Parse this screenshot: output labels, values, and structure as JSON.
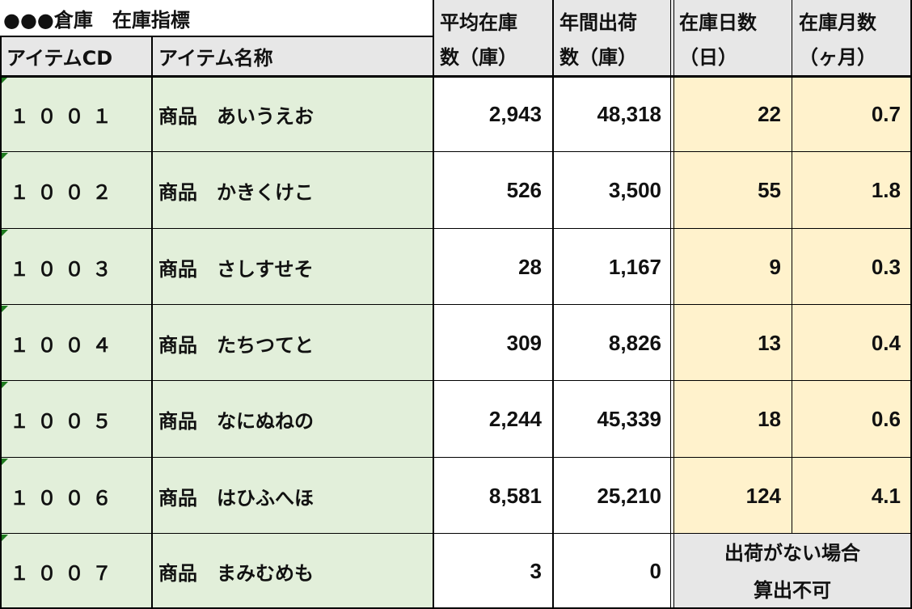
{
  "sheet": {
    "title": "●●●倉庫　在庫指標",
    "headers": {
      "code": "アイテムCD",
      "name": "アイテム名称",
      "avg_stock_1": "平均在庫",
      "avg_stock_2": "数（庫）",
      "annual_ship_1": "年間出荷",
      "annual_ship_2": "数（庫）",
      "stock_days_1": "在庫日数",
      "stock_days_2": "（日）",
      "stock_months_1": "在庫月数",
      "stock_months_2": "（ヶ月）"
    },
    "rows": [
      {
        "code": "１００１",
        "name": "商品　あいうえお",
        "avg_stock": "2,943",
        "annual_ship": "48,318",
        "days": "22",
        "months": "0.7"
      },
      {
        "code": "１００２",
        "name": "商品　かきくけこ",
        "avg_stock": "526",
        "annual_ship": "3,500",
        "days": "55",
        "months": "1.8"
      },
      {
        "code": "１００３",
        "name": "商品　さしすせそ",
        "avg_stock": "28",
        "annual_ship": "1,167",
        "days": "9",
        "months": "0.3"
      },
      {
        "code": "１００４",
        "name": "商品　たちつてと",
        "avg_stock": "309",
        "annual_ship": "8,826",
        "days": "13",
        "months": "0.4"
      },
      {
        "code": "１００５",
        "name": "商品　なにぬねの",
        "avg_stock": "2,244",
        "annual_ship": "45,339",
        "days": "18",
        "months": "0.6"
      },
      {
        "code": "１００６",
        "name": "商品　はひふへほ",
        "avg_stock": "8,581",
        "annual_ship": "25,210",
        "days": "124",
        "months": "4.1"
      }
    ],
    "last_row": {
      "code": "１００７",
      "name": "商品　まみむめも",
      "avg_stock": "3",
      "annual_ship": "0",
      "na_line1": "出荷がない場合",
      "na_line2": "算出不可"
    }
  },
  "colors": {
    "green": "#e2efda",
    "peach": "#fff2cc",
    "gray": "#e7e7e7",
    "comment_marker": "#1e7a1e"
  }
}
